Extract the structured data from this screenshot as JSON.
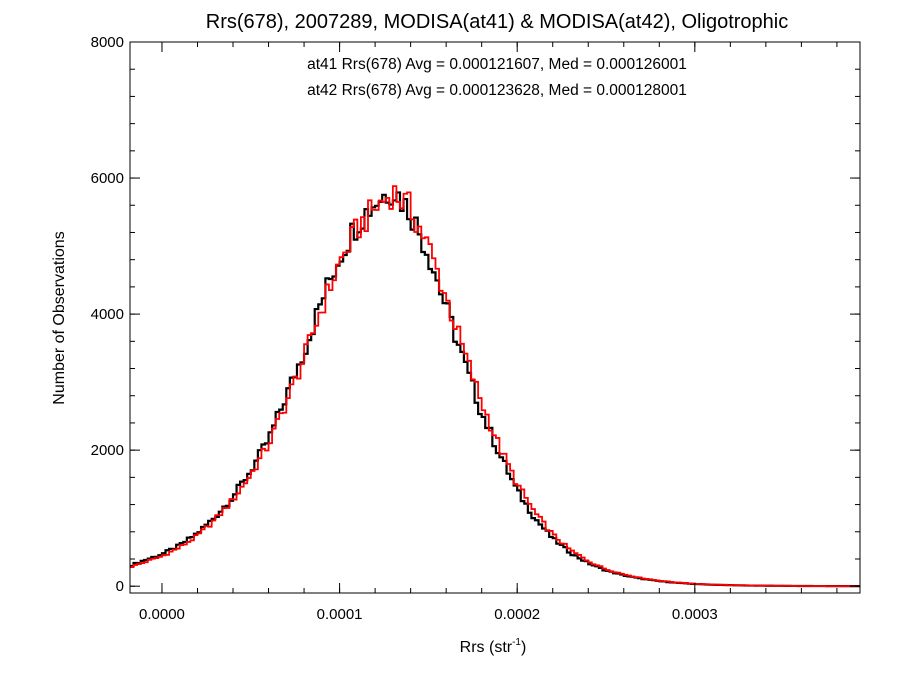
{
  "chart_data": {
    "type": "histogram",
    "title": "Rrs(678), 2007289, MODISA(at41) & MODISA(at42), Oligotrophic",
    "xlabel_base": "Rrs (str",
    "xlabel_sup": "-1",
    "xlabel_close": ")",
    "ylabel": "Number of Observations",
    "xlim": [
      -1.8e-05,
      0.000393
    ],
    "ylim": [
      -100,
      8000
    ],
    "x_ticks": [
      {
        "value": 0.0,
        "label": "0.0000"
      },
      {
        "value": 0.0001,
        "label": "0.0001"
      },
      {
        "value": 0.0002,
        "label": "0.0002"
      },
      {
        "value": 0.0003,
        "label": "0.0003"
      }
    ],
    "y_ticks": [
      {
        "value": 0,
        "label": "0"
      },
      {
        "value": 2000,
        "label": "2000"
      },
      {
        "value": 4000,
        "label": "4000"
      },
      {
        "value": 6000,
        "label": "6000"
      },
      {
        "value": 8000,
        "label": "8000"
      }
    ],
    "x_minor_step": 2e-05,
    "y_minor_step": 400,
    "grid": false,
    "annotations": [
      {
        "text": "at41 Rrs(678) Avg = 0.000121607, Med = 0.000126001",
        "color": "#000000"
      },
      {
        "text": "at42 Rrs(678) Avg = 0.000123628, Med = 0.000128001",
        "color": "#ff0000"
      }
    ],
    "series": [
      {
        "id": "at41",
        "color": "#000000",
        "points": [
          [
            -1.8e-05,
            300
          ],
          [
            -1e-05,
            380
          ],
          [
            0.0,
            470
          ],
          [
            1e-05,
            600
          ],
          [
            2e-05,
            780
          ],
          [
            3e-05,
            1020
          ],
          [
            4e-05,
            1320
          ],
          [
            5e-05,
            1700
          ],
          [
            6e-05,
            2150
          ],
          [
            7e-05,
            2800
          ],
          [
            8e-05,
            3450
          ],
          [
            9e-05,
            4200
          ],
          [
            0.0001,
            4850
          ],
          [
            0.00011,
            5350
          ],
          [
            0.00012,
            5650
          ],
          [
            0.00013,
            5850
          ],
          [
            0.00014,
            5500
          ],
          [
            0.00015,
            4900
          ],
          [
            0.00016,
            4100
          ],
          [
            0.00017,
            3300
          ],
          [
            0.00018,
            2550
          ],
          [
            0.00019,
            1950
          ],
          [
            0.0002,
            1400
          ],
          [
            0.00021,
            1000
          ],
          [
            0.00022,
            700
          ],
          [
            0.00023,
            490
          ],
          [
            0.00024,
            340
          ],
          [
            0.00025,
            230
          ],
          [
            0.00026,
            160
          ],
          [
            0.00027,
            110
          ],
          [
            0.00028,
            75
          ],
          [
            0.00029,
            50
          ],
          [
            0.0003,
            33
          ],
          [
            0.00031,
            22
          ],
          [
            0.00032,
            15
          ],
          [
            0.00033,
            10
          ],
          [
            0.00034,
            7
          ],
          [
            0.00035,
            5
          ],
          [
            0.00036,
            3
          ],
          [
            0.00037,
            2
          ],
          [
            0.00038,
            1
          ],
          [
            0.00039,
            1
          ]
        ]
      },
      {
        "id": "at42",
        "color": "#ff0000",
        "points": [
          [
            -1.8e-05,
            280
          ],
          [
            -1e-05,
            350
          ],
          [
            0.0,
            440
          ],
          [
            1e-05,
            570
          ],
          [
            2e-05,
            740
          ],
          [
            3e-05,
            980
          ],
          [
            4e-05,
            1270
          ],
          [
            5e-05,
            1640
          ],
          [
            6e-05,
            2080
          ],
          [
            7e-05,
            2700
          ],
          [
            8e-05,
            3350
          ],
          [
            9e-05,
            4100
          ],
          [
            0.0001,
            4750
          ],
          [
            0.00011,
            5250
          ],
          [
            0.00012,
            5550
          ],
          [
            0.00013,
            5800
          ],
          [
            0.00014,
            5550
          ],
          [
            0.00015,
            5000
          ],
          [
            0.00016,
            4250
          ],
          [
            0.00017,
            3450
          ],
          [
            0.00018,
            2700
          ],
          [
            0.00019,
            2050
          ],
          [
            0.0002,
            1500
          ],
          [
            0.00021,
            1080
          ],
          [
            0.00022,
            760
          ],
          [
            0.00023,
            530
          ],
          [
            0.00024,
            370
          ],
          [
            0.00025,
            250
          ],
          [
            0.00026,
            175
          ],
          [
            0.00027,
            120
          ],
          [
            0.00028,
            82
          ],
          [
            0.00029,
            55
          ],
          [
            0.0003,
            36
          ],
          [
            0.00031,
            24
          ],
          [
            0.00032,
            16
          ],
          [
            0.00033,
            11
          ],
          [
            0.00034,
            8
          ],
          [
            0.00035,
            5
          ],
          [
            0.00036,
            3
          ],
          [
            0.00037,
            2
          ],
          [
            0.00038,
            1
          ],
          [
            0.00039,
            1
          ]
        ]
      }
    ]
  }
}
